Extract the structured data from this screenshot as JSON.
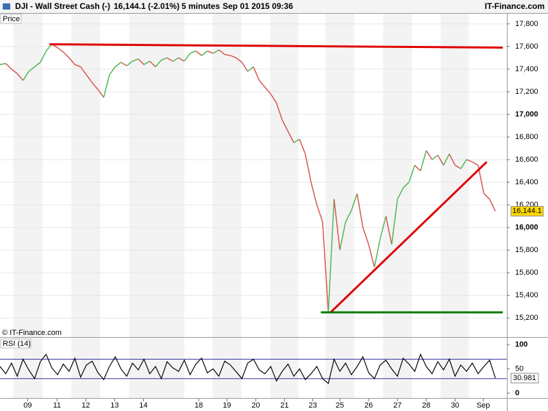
{
  "header": {
    "symbol": "DJI - Wall Street Cash (-)",
    "quote": "16,144.1 (-2.01%)",
    "interval": "5 minutes",
    "datetime": "Sep 01 2015 09:36",
    "brand": "IT-Finance.com"
  },
  "chart_data": [
    {
      "type": "line",
      "title": "Price",
      "credit": "© IT-Finance.com",
      "up_color": "#4cb84c",
      "down_color": "#d9534f",
      "xlim": [
        0,
        88
      ],
      "ylim": [
        15050,
        17890
      ],
      "yticks": [
        {
          "value": 15200,
          "label": "15,200"
        },
        {
          "value": 15400,
          "label": "15,400"
        },
        {
          "value": 15600,
          "label": "15,600"
        },
        {
          "value": 15800,
          "label": "15,800"
        },
        {
          "value": 16000,
          "label": "16,000"
        },
        {
          "value": 16200,
          "label": "16,200"
        },
        {
          "value": 16400,
          "label": "16,400"
        },
        {
          "value": 16600,
          "label": "16,600"
        },
        {
          "value": 16800,
          "label": "16,800"
        },
        {
          "value": 17000,
          "label": "17,000"
        },
        {
          "value": 17200,
          "label": "17,200"
        },
        {
          "value": 17400,
          "label": "17,400"
        },
        {
          "value": 17600,
          "label": "17,600"
        },
        {
          "value": 17800,
          "label": "17,800"
        }
      ],
      "values": [
        17440,
        17450,
        17400,
        17360,
        17300,
        17380,
        17420,
        17460,
        17560,
        17620,
        17590,
        17550,
        17500,
        17440,
        17420,
        17350,
        17280,
        17220,
        17150,
        17350,
        17420,
        17460,
        17430,
        17470,
        17490,
        17440,
        17470,
        17420,
        17480,
        17500,
        17470,
        17500,
        17470,
        17540,
        17560,
        17520,
        17560,
        17540,
        17570,
        17530,
        17520,
        17500,
        17460,
        17380,
        17420,
        17300,
        17240,
        17180,
        17100,
        16950,
        16850,
        16750,
        16780,
        16650,
        16400,
        16200,
        16050,
        15250,
        16250,
        15800,
        16050,
        16150,
        16300,
        16000,
        15850,
        15650,
        15900,
        16100,
        15850,
        16250,
        16350,
        16400,
        16550,
        16500,
        16680,
        16600,
        16640,
        16550,
        16650,
        16550,
        16520,
        16600,
        16580,
        16550,
        16300,
        16250,
        16144.1
      ],
      "last_label": "16,144.1",
      "last_color": "#ffd800",
      "trendlines": [
        {
          "x": [
            8.6,
            87.3
          ],
          "y": [
            17620,
            17590
          ],
          "color": "#e00000"
        },
        {
          "x": [
            57.4,
            84.5
          ],
          "y": [
            15250,
            16580
          ],
          "color": "#e00000"
        },
        {
          "x": [
            55.7,
            87.3
          ],
          "y": [
            15250,
            15250
          ],
          "color": "#007a00"
        }
      ]
    },
    {
      "type": "line",
      "title": "RSI (14)",
      "color": "#000000",
      "level_color": "#3030a0",
      "xlim": [
        0,
        88
      ],
      "ylim": [
        -10,
        113
      ],
      "yticks": [
        0,
        50,
        100
      ],
      "levels": [
        70,
        30
      ],
      "values": [
        55,
        40,
        62,
        35,
        70,
        48,
        30,
        65,
        80,
        52,
        38,
        60,
        45,
        72,
        33,
        58,
        66,
        42,
        28,
        55,
        75,
        50,
        35,
        62,
        48,
        70,
        40,
        55,
        30,
        65,
        52,
        45,
        68,
        38,
        60,
        72,
        42,
        50,
        35,
        66,
        58,
        44,
        30,
        62,
        70,
        48,
        40,
        55,
        25,
        45,
        60,
        35,
        50,
        28,
        40,
        55,
        30,
        20,
        70,
        45,
        62,
        38,
        55,
        75,
        42,
        30,
        58,
        68,
        50,
        35,
        72,
        60,
        45,
        80,
        55,
        40,
        65,
        48,
        70,
        35,
        58,
        45,
        62,
        40,
        55,
        68,
        30.981
      ],
      "last_label": "30.981",
      "xticks": [
        {
          "value": 4.8,
          "label": "09"
        },
        {
          "value": 9.9,
          "label": "11"
        },
        {
          "value": 14.9,
          "label": "12"
        },
        {
          "value": 19.9,
          "label": "13"
        },
        {
          "value": 24.9,
          "label": "14"
        },
        {
          "value": 34.5,
          "label": "18"
        },
        {
          "value": 39.4,
          "label": "19"
        },
        {
          "value": 44.4,
          "label": "20"
        },
        {
          "value": 49.4,
          "label": "21"
        },
        {
          "value": 54.3,
          "label": "23"
        },
        {
          "value": 59,
          "label": "25"
        },
        {
          "value": 64,
          "label": "26"
        },
        {
          "value": 69,
          "label": "27"
        },
        {
          "value": 74,
          "label": "28"
        },
        {
          "value": 79,
          "label": "30"
        },
        {
          "value": 83.9,
          "label": "Sep"
        }
      ]
    }
  ]
}
